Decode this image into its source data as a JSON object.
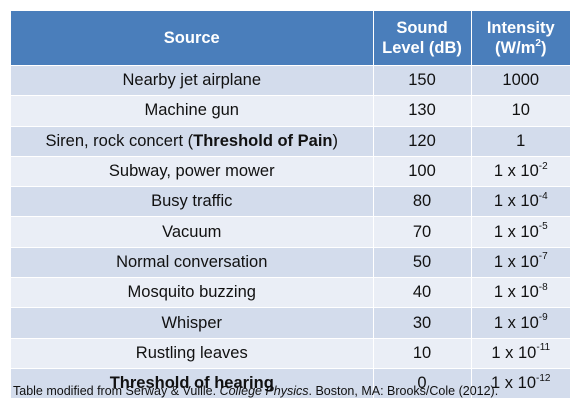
{
  "table": {
    "headers": {
      "source": "Source",
      "level_line1": "Sound",
      "level_line2": "Level (dB)",
      "intensity_line1": "Intensity",
      "intensity_line2_pre": "(W/m",
      "intensity_line2_sup": "2",
      "intensity_line2_post": ")"
    },
    "rows": [
      {
        "source": "Nearby jet airplane",
        "level": "150",
        "intensity": "1000"
      },
      {
        "source": "Machine gun",
        "level": "130",
        "intensity": "10"
      },
      {
        "source_pre": "Siren, rock concert (",
        "source_bold": "Threshold of Pain",
        "source_post": ")",
        "level": "120",
        "intensity": "1"
      },
      {
        "source": "Subway, power mower",
        "level": "100",
        "intensity_base": "1 x 10",
        "intensity_exp": "-2"
      },
      {
        "source": "Busy traffic",
        "level": "80",
        "intensity_base": "1 x 10",
        "intensity_exp": "-4"
      },
      {
        "source": "Vacuum",
        "level": "70",
        "intensity_base": "1 x 10",
        "intensity_exp": "-5"
      },
      {
        "source": "Normal conversation",
        "level": "50",
        "intensity_base": "1 x 10",
        "intensity_exp": "-7"
      },
      {
        "source": "Mosquito buzzing",
        "level": "40",
        "intensity_base": "1 x 10",
        "intensity_exp": "-8"
      },
      {
        "source": "Whisper",
        "level": "30",
        "intensity_base": "1 x 10",
        "intensity_exp": "-9"
      },
      {
        "source": "Rustling leaves",
        "level": "10",
        "intensity_base": "1 x 10",
        "intensity_exp": "-11"
      },
      {
        "source": "Threshold of hearing",
        "level": "0",
        "intensity_base": "1 x 10",
        "intensity_exp": "-12"
      }
    ]
  },
  "caption": {
    "pre": "Table modified from Serway & Vuille. ",
    "italic": "College Physics",
    "post": ". Boston, MA: Brooks/Cole (2012)."
  },
  "colors": {
    "header": "#4a7ebb",
    "row_odd": "#d3dcec",
    "row_even": "#eaeef6"
  }
}
